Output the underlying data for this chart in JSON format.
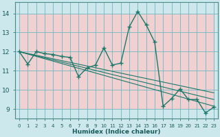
{
  "xlabel": "Humidex (Indice chaleur)",
  "bg_color": "#cce8ec",
  "grid_major_color": "#7ab8c0",
  "grid_minor_color": "#e8b8b8",
  "line_color": "#1a7868",
  "xlim": [
    -0.5,
    23.5
  ],
  "ylim": [
    8.5,
    14.6
  ],
  "xticks": [
    0,
    1,
    2,
    3,
    4,
    5,
    6,
    7,
    8,
    9,
    10,
    11,
    12,
    13,
    14,
    15,
    16,
    17,
    18,
    19,
    20,
    21,
    22,
    23
  ],
  "yticks": [
    9,
    10,
    11,
    12,
    13,
    14
  ],
  "series1_x": [
    0,
    1,
    2,
    3,
    4,
    5,
    6,
    7,
    8,
    9,
    10,
    11,
    12,
    13,
    14,
    15,
    16,
    17,
    18,
    19,
    20,
    21,
    22,
    23
  ],
  "series1_y": [
    12.0,
    11.35,
    12.0,
    11.9,
    11.85,
    11.75,
    11.7,
    10.7,
    11.15,
    11.3,
    12.2,
    11.3,
    11.4,
    13.3,
    14.1,
    13.4,
    12.5,
    9.15,
    9.55,
    10.05,
    9.5,
    9.5,
    8.8,
    9.1
  ],
  "series2_x": [
    0,
    23
  ],
  "series2_y": [
    12.0,
    9.85
  ],
  "series3_x": [
    0,
    23
  ],
  "series3_y": [
    12.0,
    9.5
  ],
  "series4_x": [
    0,
    23
  ],
  "series4_y": [
    12.0,
    9.15
  ]
}
